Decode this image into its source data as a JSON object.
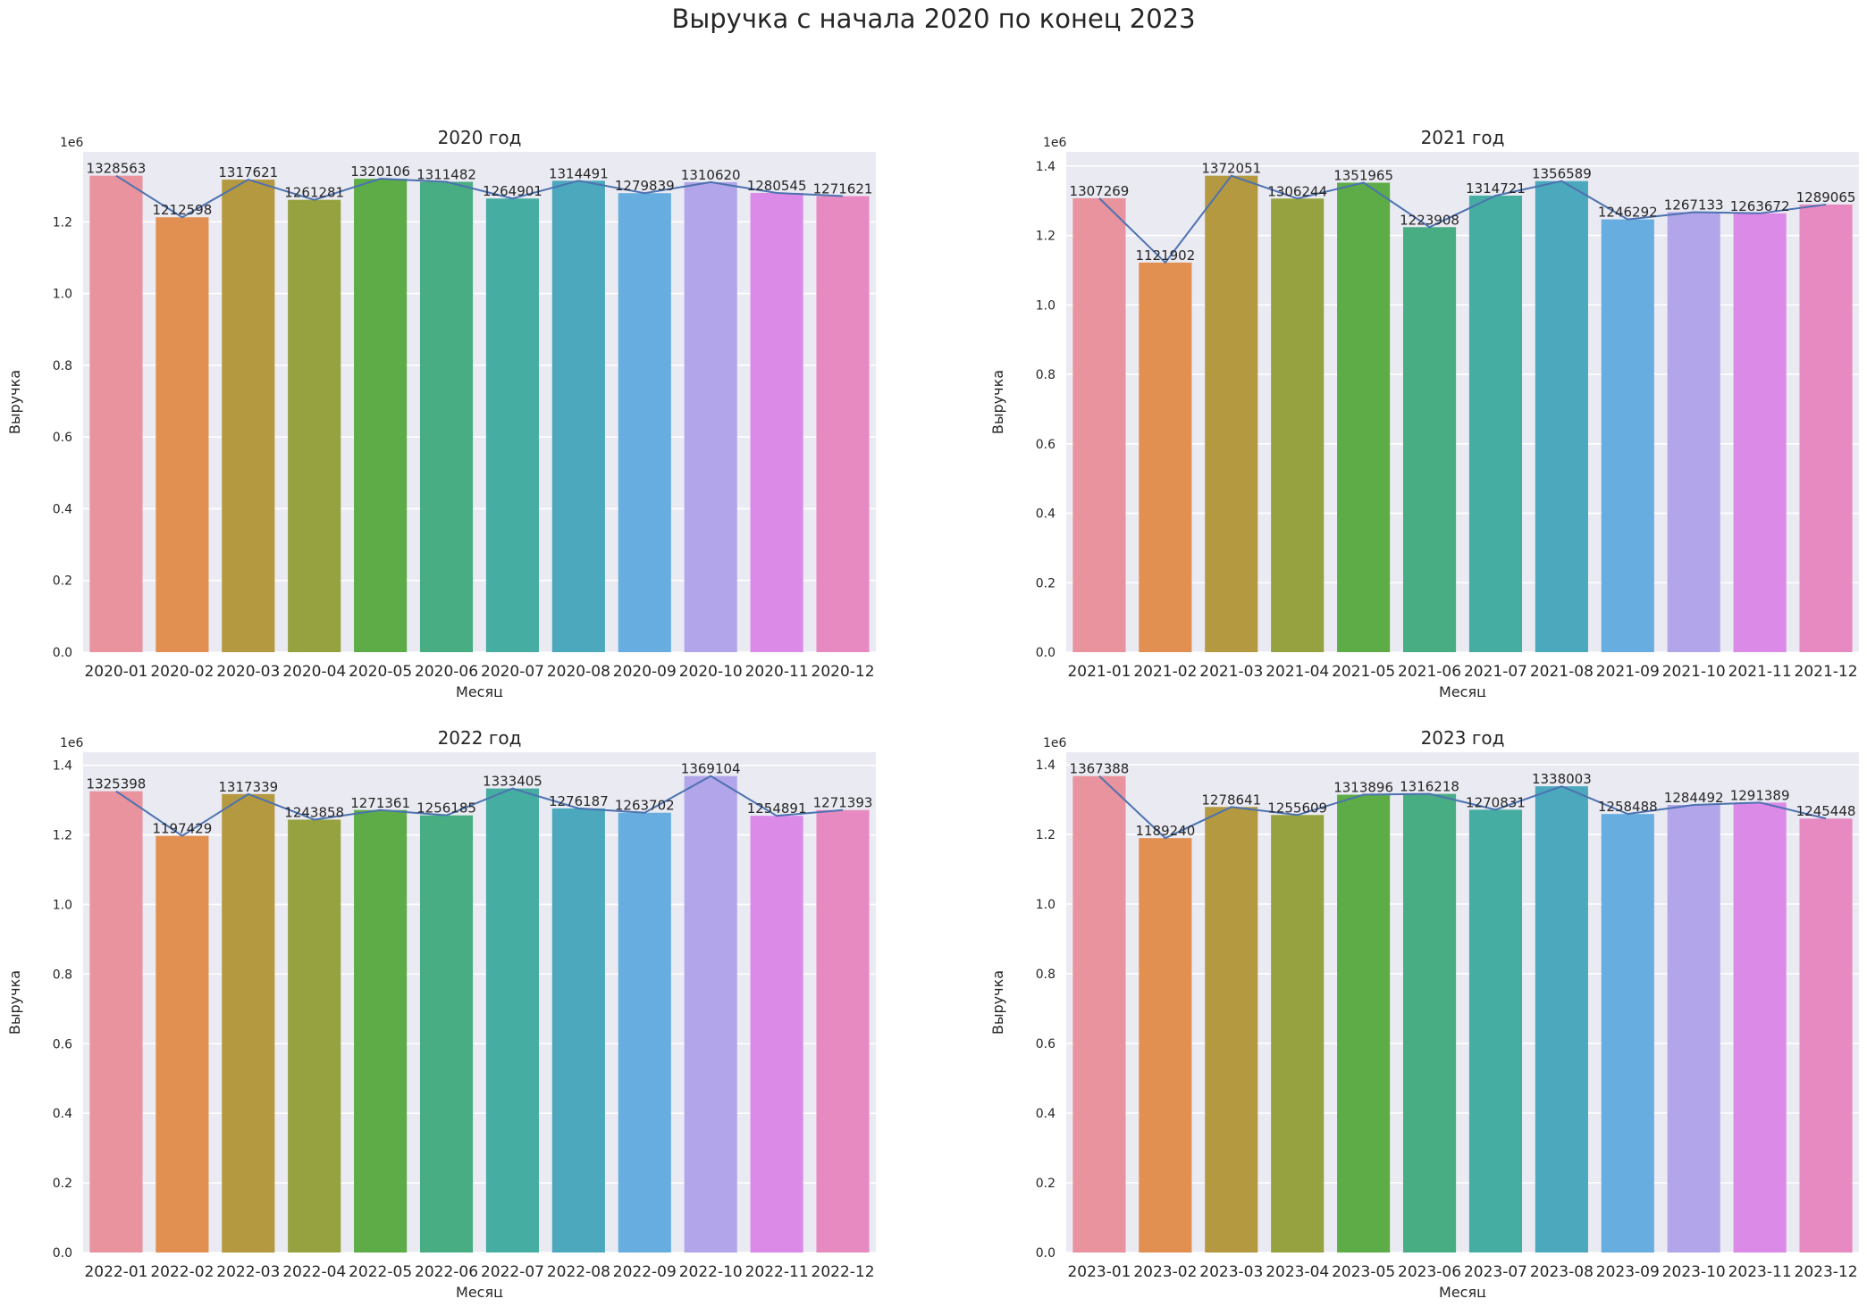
{
  "suptitle": "Выручка с начала 2020 по конец 2023",
  "colors": [
    "#e8939d",
    "#e28f52",
    "#b59940",
    "#95a23f",
    "#5dac47",
    "#49ad83",
    "#46ada2",
    "#4ba8bd",
    "#67addf",
    "#b2a5ea",
    "#dc8ae7",
    "#e78ac2"
  ],
  "line_color": "#4c72b0",
  "chart_data": [
    {
      "type": "bar",
      "title": "2020 год",
      "xlabel": "Месяц",
      "ylabel": "Выручка",
      "offset_text": "1e6",
      "ylim": [
        0,
        1395000.0
      ],
      "yticks": [
        0,
        0.2,
        0.4,
        0.6,
        0.8,
        1.0,
        1.2
      ],
      "ytick_labels": [
        "0.0",
        "0.2",
        "0.4",
        "0.6",
        "0.8",
        "1.0",
        "1.2"
      ],
      "categories": [
        "2020-01",
        "2020-02",
        "2020-03",
        "2020-04",
        "2020-05",
        "2020-06",
        "2020-07",
        "2020-08",
        "2020-09",
        "2020-10",
        "2020-11",
        "2020-12"
      ],
      "values": [
        1328563,
        1212598,
        1317621,
        1261281,
        1320106,
        1311482,
        1264901,
        1314491,
        1279839,
        1310620,
        1280545,
        1271621
      ],
      "labels": [
        "1328563",
        "1212598",
        "1317621",
        "1261281",
        "1320106",
        "1311482",
        "1264901",
        "1314491",
        "1279839",
        "1310620",
        "1280545",
        "1271621"
      ]
    },
    {
      "type": "bar",
      "title": "2021 год",
      "xlabel": "Месяц",
      "ylabel": "Выручка",
      "offset_text": "1e6",
      "ylim": [
        0,
        1440700.0
      ],
      "yticks": [
        0,
        0.2,
        0.4,
        0.6,
        0.8,
        1.0,
        1.2,
        1.4
      ],
      "ytick_labels": [
        "0.0",
        "0.2",
        "0.4",
        "0.6",
        "0.8",
        "1.0",
        "1.2",
        "1.4"
      ],
      "categories": [
        "2021-01",
        "2021-02",
        "2021-03",
        "2021-04",
        "2021-05",
        "2021-06",
        "2021-07",
        "2021-08",
        "2021-09",
        "2021-10",
        "2021-11",
        "2021-12"
      ],
      "values": [
        1307269,
        1121902,
        1372051,
        1306244,
        1351965,
        1223908,
        1314721,
        1356589,
        1246292,
        1267133,
        1263672,
        1289065
      ],
      "labels": [
        "1307269",
        "1121902",
        "1372051",
        "1306244",
        "1351965",
        "1223908",
        "1314721",
        "1356589",
        "1246292",
        "1267133",
        "1263672",
        "1289065"
      ]
    },
    {
      "type": "bar",
      "title": "2022 год",
      "xlabel": "Месяц",
      "ylabel": "Выручка",
      "offset_text": "1e6",
      "ylim": [
        0,
        1437600.0
      ],
      "yticks": [
        0,
        0.2,
        0.4,
        0.6,
        0.8,
        1.0,
        1.2,
        1.4
      ],
      "ytick_labels": [
        "0.0",
        "0.2",
        "0.4",
        "0.6",
        "0.8",
        "1.0",
        "1.2",
        "1.4"
      ],
      "categories": [
        "2022-01",
        "2022-02",
        "2022-03",
        "2022-04",
        "2022-05",
        "2022-06",
        "2022-07",
        "2022-08",
        "2022-09",
        "2022-10",
        "2022-11",
        "2022-12"
      ],
      "values": [
        1325398,
        1197429,
        1317339,
        1243858,
        1271361,
        1256185,
        1333405,
        1276187,
        1263702,
        1369104,
        1254891,
        1271393
      ],
      "labels": [
        "1325398",
        "1197429",
        "1317339",
        "1243858",
        "1271361",
        "1256185",
        "1333405",
        "1276187",
        "1263702",
        "1369104",
        "1254891",
        "1271393"
      ]
    },
    {
      "type": "bar",
      "title": "2023 год",
      "xlabel": "Месяц",
      "ylabel": "Выручка",
      "offset_text": "1e6",
      "ylim": [
        0,
        1435800.0
      ],
      "yticks": [
        0,
        0.2,
        0.4,
        0.6,
        0.8,
        1.0,
        1.2,
        1.4
      ],
      "ytick_labels": [
        "0.0",
        "0.2",
        "0.4",
        "0.6",
        "0.8",
        "1.0",
        "1.2",
        "1.4"
      ],
      "categories": [
        "2023-01",
        "2023-02",
        "2023-03",
        "2023-04",
        "2023-05",
        "2023-06",
        "2023-07",
        "2023-08",
        "2023-09",
        "2023-10",
        "2023-11",
        "2023-12"
      ],
      "values": [
        1367388,
        1189240,
        1278641,
        1255609,
        1313896,
        1316218,
        1270831,
        1338003,
        1258488,
        1284492,
        1291389,
        1245448
      ],
      "labels": [
        "1367388",
        "1189240",
        "1278641",
        "1255609",
        "1313896",
        "1316218",
        "1270831",
        "1338003",
        "1258488",
        "1284492",
        "1291389",
        "1245448"
      ]
    }
  ]
}
